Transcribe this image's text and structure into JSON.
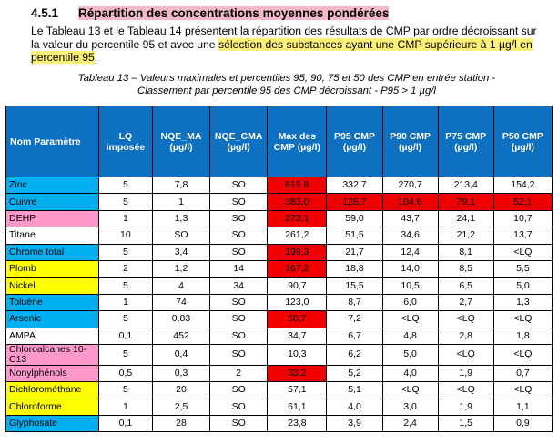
{
  "section": {
    "number": "4.5.1",
    "title": "Répartition des concentrations moyennes pondérées"
  },
  "intro": {
    "text_before": "Le Tableau 13 et le Tableau 14 présentent la répartition des résultats de CMP par ordre décroissant sur la valeur du percentile 95 et avec une ",
    "highlight": "sélection des substances ayant une CMP supérieure à 1 µg/l en percentile 95",
    "text_after": "."
  },
  "caption": {
    "line1": "Tableau 13 – Valeurs maximales et percentiles 95, 90, 75 et 50 des CMP en entrée station -",
    "line2": "Classement par percentile 95 des CMP décroissant - P95 > 1 µg/l"
  },
  "table": {
    "headers": [
      [
        "Nom Paramètre"
      ],
      [
        "LQ",
        "imposée"
      ],
      [
        "NQE_MA",
        "(µg/l)"
      ],
      [
        "NQE_CMA",
        "(µg/l)"
      ],
      [
        "Max des",
        "CMP (µg/l)"
      ],
      [
        "P95 CMP",
        "(µg/l)"
      ],
      [
        "P90 CMP",
        "(µg/l)"
      ],
      [
        "P75 CMP",
        "(µg/l)"
      ],
      [
        "P50 CMP",
        "(µg/l)"
      ]
    ],
    "rows": [
      {
        "name": "Zinc",
        "color": "blue",
        "cells": [
          "5",
          "7,8",
          "SO",
          "615,8",
          "332,7",
          "270,7",
          "213,4",
          "154,2"
        ],
        "hi": [
          3
        ]
      },
      {
        "name": "Cuivre",
        "color": "blue",
        "cells": [
          "5",
          "1",
          "SO",
          "383,0",
          "128,7",
          "104,6",
          "79,1",
          "52,1"
        ],
        "hi": [
          3,
          4,
          5,
          6,
          7
        ]
      },
      {
        "name": "DEHP",
        "color": "pink",
        "cells": [
          "1",
          "1,3",
          "SO",
          "273,1",
          "59,0",
          "43,7",
          "24,1",
          "10,7"
        ],
        "hi": [
          3
        ]
      },
      {
        "name": "Titane",
        "color": "none",
        "cells": [
          "10",
          "SO",
          "SO",
          "261,2",
          "51,5",
          "34,6",
          "21,2",
          "13,7"
        ],
        "hi": []
      },
      {
        "name": "Chrome total",
        "color": "blue",
        "cells": [
          "5",
          "3,4",
          "SO",
          "199,3",
          "21,7",
          "12,4",
          "8,1",
          "<LQ"
        ],
        "hi": [
          3
        ]
      },
      {
        "name": "Plomb",
        "color": "yellow",
        "cells": [
          "2",
          "1,2",
          "14",
          "167,2",
          "18,8",
          "14,0",
          "8,5",
          "5,5"
        ],
        "hi": [
          3
        ]
      },
      {
        "name": "Nickel",
        "color": "yellow",
        "cells": [
          "5",
          "4",
          "34",
          "90,7",
          "15,5",
          "10,5",
          "6,5",
          "5,0"
        ],
        "hi": []
      },
      {
        "name": "Toluène",
        "color": "blue",
        "cells": [
          "1",
          "74",
          "SO",
          "123,0",
          "8,7",
          "6,0",
          "2,7",
          "1,3"
        ],
        "hi": []
      },
      {
        "name": "Arsenic",
        "color": "blue",
        "cells": [
          "5",
          "0,83",
          "SO",
          "50,7",
          "7,2",
          "<LQ",
          "<LQ",
          "<LQ"
        ],
        "hi": [
          3
        ]
      },
      {
        "name": "AMPA",
        "color": "none",
        "cells": [
          "0,1",
          "452",
          "SO",
          "34,7",
          "6,7",
          "4,8",
          "2,8",
          "1,8"
        ],
        "hi": []
      },
      {
        "name": "Chloroalcanes 10-C13",
        "color": "pink",
        "cells": [
          "5",
          "0,4",
          "SO",
          "10,3",
          "6,2",
          "5,0",
          "<LQ",
          "<LQ"
        ],
        "hi": []
      },
      {
        "name": "Nonylphénols",
        "color": "pink",
        "cells": [
          "0,5",
          "0,3",
          "2",
          "33,2",
          "5,2",
          "4,0",
          "1,9",
          "0,7"
        ],
        "hi": [
          3
        ]
      },
      {
        "name": "Dichlorométhane",
        "color": "yellow",
        "cells": [
          "5",
          "20",
          "SO",
          "57,1",
          "5,1",
          "<LQ",
          "<LQ",
          "<LQ"
        ],
        "hi": []
      },
      {
        "name": "Chloroforme",
        "color": "yellow",
        "cells": [
          "1",
          "2,5",
          "SO",
          "61,1",
          "4,0",
          "3,0",
          "1,9",
          "1,1"
        ],
        "hi": []
      },
      {
        "name": "Glyphosate",
        "color": "blue",
        "cells": [
          "0,1",
          "28",
          "SO",
          "23,8",
          "3,9",
          "2,4",
          "1,5",
          "0,9"
        ],
        "hi": []
      }
    ]
  },
  "colors": {
    "header_bg": "#0e70c0",
    "highlight_red": "#f00000",
    "row_blue": "#00b0f0",
    "row_pink": "#ff99cc",
    "row_yellow": "#ffff00",
    "title_pink": "#f4b8c8",
    "text_highlight": "#fff176"
  }
}
